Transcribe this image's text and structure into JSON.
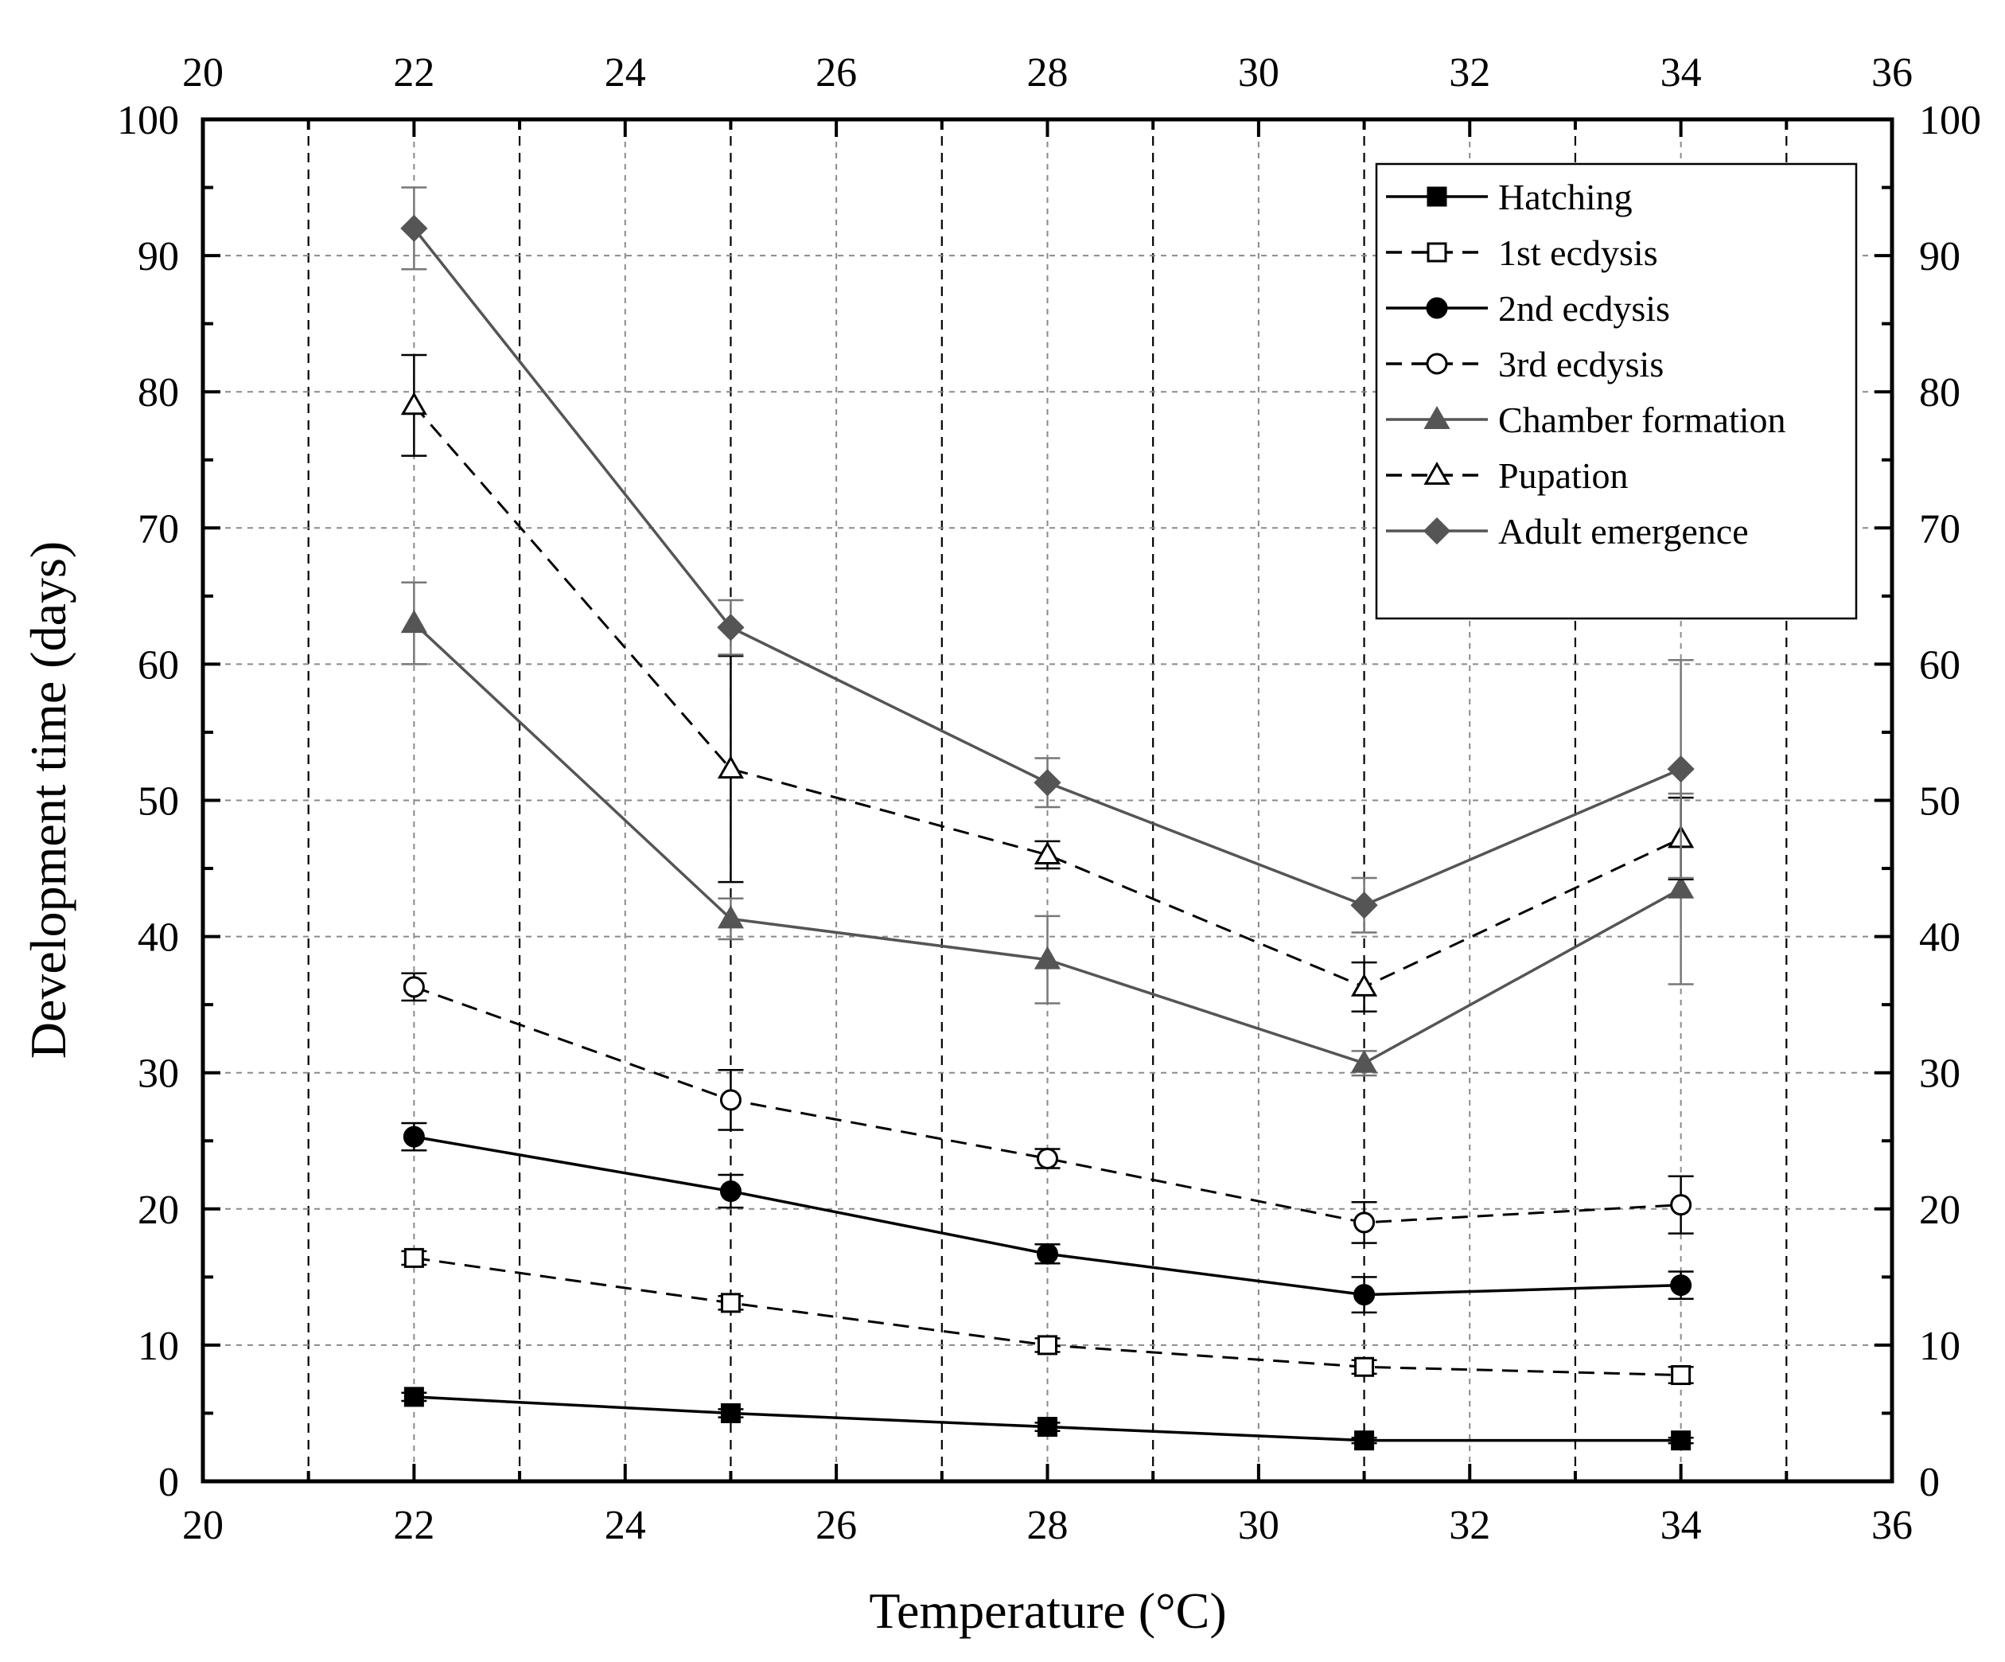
{
  "chart_data": {
    "type": "line",
    "xlabel": "Temperature (°C)",
    "ylabel": "Development time (days)",
    "xlim": [
      20,
      36
    ],
    "ylim": [
      0,
      100
    ],
    "x_ticks": [
      20,
      22,
      24,
      26,
      28,
      30,
      32,
      34,
      36
    ],
    "y_ticks": [
      0,
      10,
      20,
      30,
      40,
      50,
      60,
      70,
      80,
      90,
      100
    ],
    "x": [
      22,
      25,
      28,
      31,
      34
    ],
    "grid": true,
    "legend_position": "top-right",
    "series": [
      {
        "name": "Hatching",
        "marker": "square-filled",
        "dash": "solid",
        "color": "#000000",
        "values": [
          6.2,
          5.0,
          4.0,
          3.0,
          3.0
        ],
        "errors": [
          0.3,
          0.3,
          0.3,
          0.2,
          0.2
        ]
      },
      {
        "name": "1st ecdysis",
        "marker": "square-open",
        "dash": "dashed",
        "color": "#000000",
        "values": [
          16.4,
          13.1,
          10.0,
          8.4,
          7.8
        ],
        "errors": [
          0.5,
          0.5,
          0.5,
          0.5,
          0.6
        ]
      },
      {
        "name": "2nd ecdysis",
        "marker": "circle-filled",
        "dash": "solid",
        "color": "#000000",
        "values": [
          25.3,
          21.3,
          16.7,
          13.7,
          14.4
        ],
        "errors": [
          1.0,
          1.2,
          0.7,
          1.3,
          1.0
        ]
      },
      {
        "name": "3rd ecdysis",
        "marker": "circle-open",
        "dash": "dashed",
        "color": "#000000",
        "values": [
          36.3,
          28.0,
          23.7,
          19.0,
          20.3
        ],
        "errors": [
          1.0,
          2.2,
          0.7,
          1.5,
          2.1
        ]
      },
      {
        "name": "Chamber formation",
        "marker": "triangle-filled",
        "dash": "solid",
        "color": "#555555",
        "values": [
          63.0,
          41.3,
          38.3,
          30.7,
          43.5
        ],
        "errors": [
          3.0,
          1.5,
          3.2,
          0.9,
          7.0
        ]
      },
      {
        "name": "Pupation",
        "marker": "triangle-open",
        "dash": "dashed",
        "color": "#000000",
        "values": [
          79.0,
          52.3,
          46.0,
          36.3,
          47.2
        ],
        "errors": [
          3.7,
          8.3,
          1.0,
          1.8,
          3.0
        ]
      },
      {
        "name": "Adult emergence",
        "marker": "diamond-filled",
        "dash": "solid",
        "color": "#555555",
        "values": [
          92.0,
          62.7,
          51.3,
          42.3,
          52.3
        ],
        "errors": [
          3.0,
          2.0,
          1.8,
          2.0,
          8.0
        ]
      }
    ]
  }
}
